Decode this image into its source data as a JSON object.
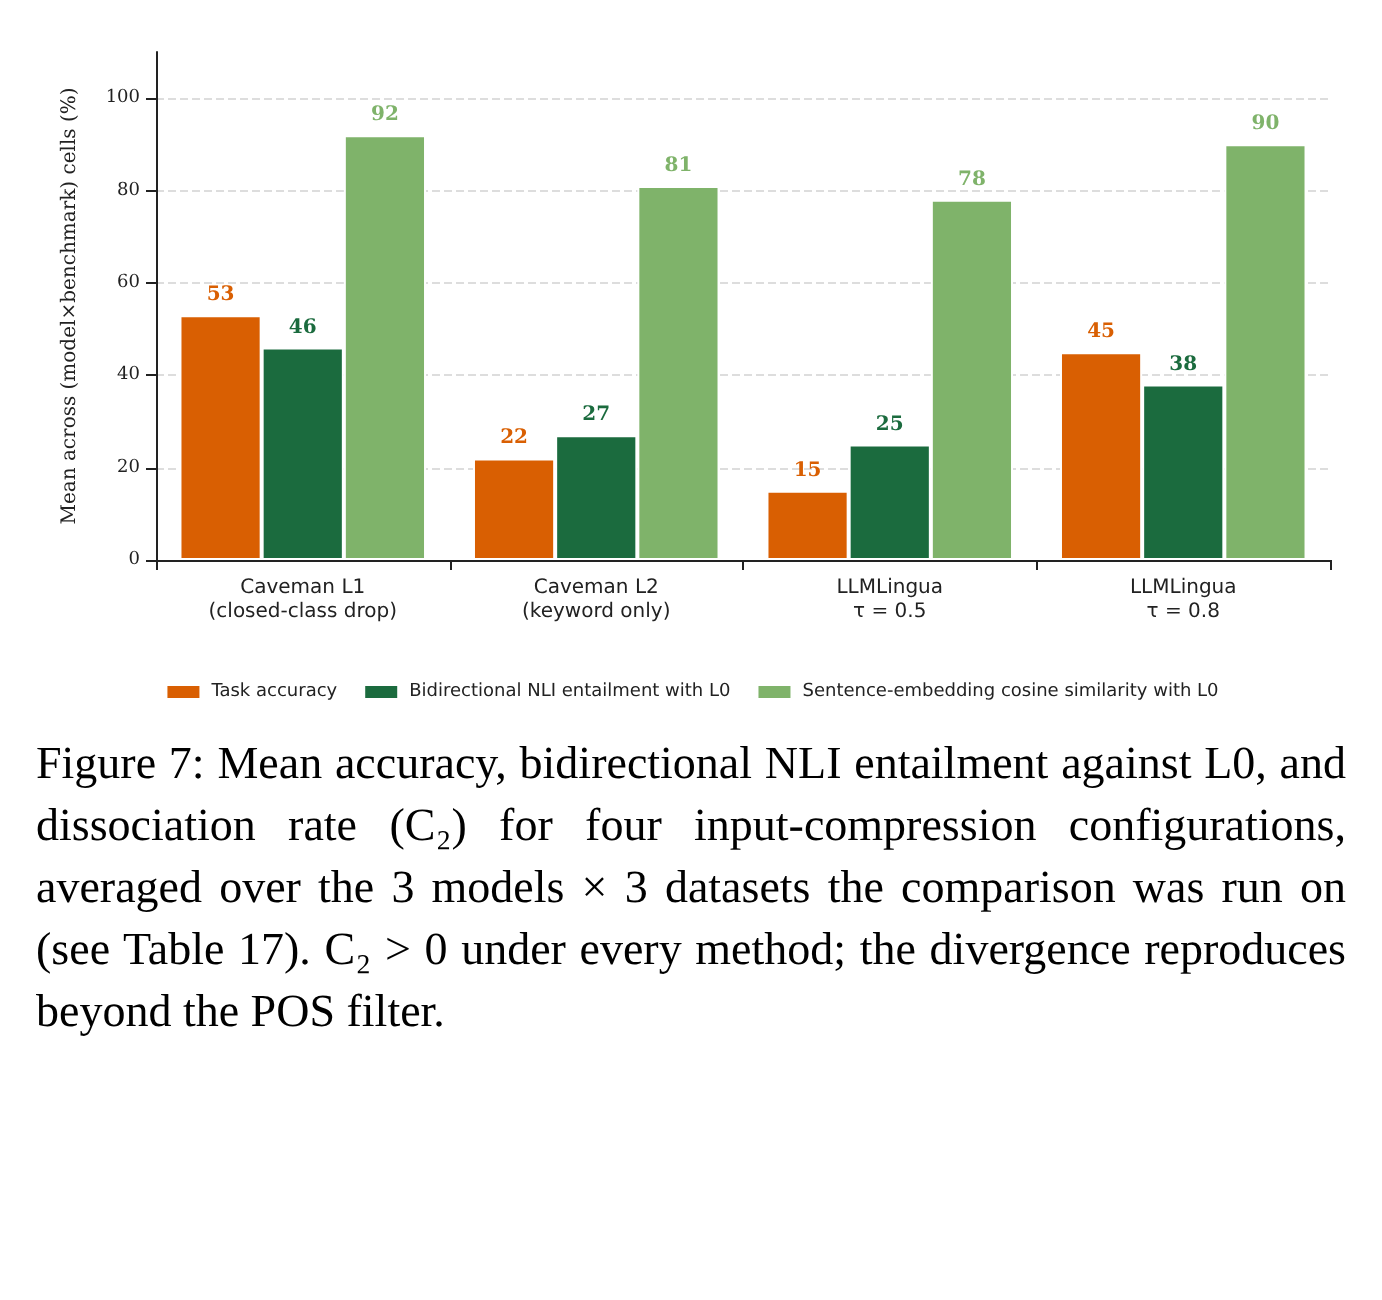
{
  "chart_data": {
    "type": "bar",
    "ylabel": "Mean across (model×benchmark) cells (%)",
    "categories": [
      "Caveman L1\n(closed-class drop)",
      "Caveman L2\n(keyword only)",
      "LLMLingua\nτ = 0.5",
      "LLMLingua\nτ = 0.8"
    ],
    "series": [
      {
        "name": "Task accuracy",
        "color": "#d95f02",
        "values": [
          53,
          22,
          15,
          45
        ]
      },
      {
        "name": "Bidirectional NLI entailment with L0",
        "color": "#1b6b3e",
        "values": [
          46,
          27,
          25,
          38
        ]
      },
      {
        "name": "Sentence-embedding cosine similarity with L0",
        "color": "#7fb36a",
        "values": [
          92,
          81,
          78,
          90
        ]
      }
    ],
    "ylim": [
      0,
      110
    ],
    "yticks": [
      0,
      20,
      40,
      60,
      80,
      100
    ],
    "grid": "y",
    "legend": "bottom",
    "data_labels": true,
    "annotations": [
      "Figure 7: Mean accuracy, bidirectional NLI entailment against L0, and dissociation rate (C₂) for four input-compression configurations, averaged over the 3 models × 3 datasets the comparison was run on (see Table 17). C₂ > 0 under every method; the divergence reproduces beyond the POS filter."
    ]
  }
}
